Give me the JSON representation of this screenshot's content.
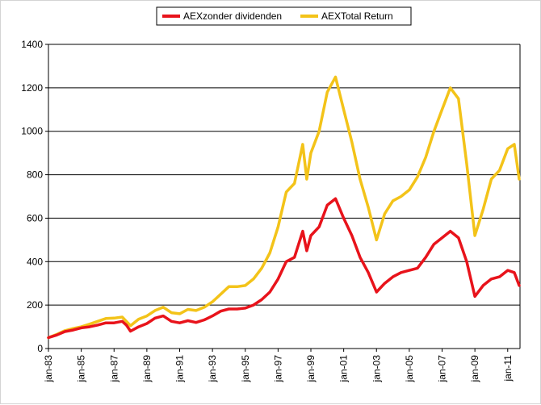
{
  "chart_data": {
    "type": "line",
    "title": "",
    "xlabel": "",
    "ylabel": "",
    "ylim": [
      0,
      1400
    ],
    "yticks": [
      "0",
      "200",
      "400",
      "600",
      "800",
      "1000",
      "1200",
      "1400"
    ],
    "x_tick_labels": [
      "jan-83",
      "jan-85",
      "jan-87",
      "jan-89",
      "jan-91",
      "jan-93",
      "jan-95",
      "jan-97",
      "jan-99",
      "jan-01",
      "jan-03",
      "jan-05",
      "jan-07",
      "jan-09",
      "jan-11"
    ],
    "xlim": [
      1983.0,
      2011.75
    ],
    "grid": "horizontal",
    "legend_position": "top-center",
    "series": [
      {
        "name": "AEXzonder dividenden",
        "color": "#e8131b",
        "points": [
          [
            1983.0,
            50
          ],
          [
            1983.5,
            62
          ],
          [
            1984.0,
            78
          ],
          [
            1984.5,
            85
          ],
          [
            1985.0,
            95
          ],
          [
            1985.5,
            100
          ],
          [
            1986.0,
            108
          ],
          [
            1986.5,
            118
          ],
          [
            1987.0,
            118
          ],
          [
            1987.5,
            125
          ],
          [
            1987.75,
            108
          ],
          [
            1988.0,
            80
          ],
          [
            1988.5,
            100
          ],
          [
            1989.0,
            115
          ],
          [
            1989.5,
            140
          ],
          [
            1990.0,
            150
          ],
          [
            1990.5,
            125
          ],
          [
            1991.0,
            118
          ],
          [
            1991.5,
            128
          ],
          [
            1992.0,
            120
          ],
          [
            1992.5,
            132
          ],
          [
            1993.0,
            150
          ],
          [
            1993.5,
            172
          ],
          [
            1994.0,
            182
          ],
          [
            1994.5,
            182
          ],
          [
            1995.0,
            186
          ],
          [
            1995.5,
            200
          ],
          [
            1996.0,
            225
          ],
          [
            1996.5,
            260
          ],
          [
            1997.0,
            320
          ],
          [
            1997.5,
            400
          ],
          [
            1998.0,
            420
          ],
          [
            1998.5,
            540
          ],
          [
            1998.75,
            450
          ],
          [
            1999.0,
            520
          ],
          [
            1999.5,
            560
          ],
          [
            2000.0,
            660
          ],
          [
            2000.5,
            690
          ],
          [
            2001.0,
            600
          ],
          [
            2001.5,
            520
          ],
          [
            2002.0,
            420
          ],
          [
            2002.5,
            350
          ],
          [
            2003.0,
            260
          ],
          [
            2003.5,
            300
          ],
          [
            2004.0,
            330
          ],
          [
            2004.5,
            350
          ],
          [
            2005.0,
            360
          ],
          [
            2005.5,
            370
          ],
          [
            2006.0,
            420
          ],
          [
            2006.5,
            480
          ],
          [
            2007.0,
            510
          ],
          [
            2007.5,
            540
          ],
          [
            2008.0,
            510
          ],
          [
            2008.5,
            400
          ],
          [
            2009.0,
            240
          ],
          [
            2009.5,
            290
          ],
          [
            2010.0,
            320
          ],
          [
            2010.5,
            330
          ],
          [
            2011.0,
            360
          ],
          [
            2011.4,
            350
          ],
          [
            2011.7,
            290
          ]
        ]
      },
      {
        "name": "AEXTotal Return",
        "color": "#f3c319",
        "points": [
          [
            1983.0,
            50
          ],
          [
            1983.5,
            65
          ],
          [
            1984.0,
            82
          ],
          [
            1984.5,
            92
          ],
          [
            1985.0,
            100
          ],
          [
            1985.5,
            112
          ],
          [
            1986.0,
            125
          ],
          [
            1986.5,
            138
          ],
          [
            1987.0,
            140
          ],
          [
            1987.5,
            145
          ],
          [
            1987.75,
            125
          ],
          [
            1988.0,
            105
          ],
          [
            1988.5,
            135
          ],
          [
            1989.0,
            150
          ],
          [
            1989.5,
            175
          ],
          [
            1990.0,
            190
          ],
          [
            1990.5,
            165
          ],
          [
            1991.0,
            160
          ],
          [
            1991.5,
            180
          ],
          [
            1992.0,
            175
          ],
          [
            1992.5,
            190
          ],
          [
            1993.0,
            215
          ],
          [
            1993.5,
            250
          ],
          [
            1994.0,
            285
          ],
          [
            1994.5,
            285
          ],
          [
            1995.0,
            290
          ],
          [
            1995.5,
            320
          ],
          [
            1996.0,
            370
          ],
          [
            1996.5,
            440
          ],
          [
            1997.0,
            560
          ],
          [
            1997.5,
            720
          ],
          [
            1998.0,
            760
          ],
          [
            1998.5,
            940
          ],
          [
            1998.75,
            780
          ],
          [
            1999.0,
            900
          ],
          [
            1999.5,
            1000
          ],
          [
            2000.0,
            1180
          ],
          [
            2000.5,
            1250
          ],
          [
            2001.0,
            1100
          ],
          [
            2001.5,
            950
          ],
          [
            2002.0,
            780
          ],
          [
            2002.5,
            650
          ],
          [
            2003.0,
            500
          ],
          [
            2003.5,
            620
          ],
          [
            2004.0,
            680
          ],
          [
            2004.5,
            700
          ],
          [
            2005.0,
            730
          ],
          [
            2005.5,
            790
          ],
          [
            2006.0,
            880
          ],
          [
            2006.5,
            1000
          ],
          [
            2007.0,
            1100
          ],
          [
            2007.5,
            1200
          ],
          [
            2008.0,
            1150
          ],
          [
            2008.5,
            850
          ],
          [
            2009.0,
            520
          ],
          [
            2009.5,
            640
          ],
          [
            2010.0,
            780
          ],
          [
            2010.5,
            820
          ],
          [
            2011.0,
            920
          ],
          [
            2011.4,
            940
          ],
          [
            2011.7,
            780
          ]
        ]
      }
    ]
  }
}
